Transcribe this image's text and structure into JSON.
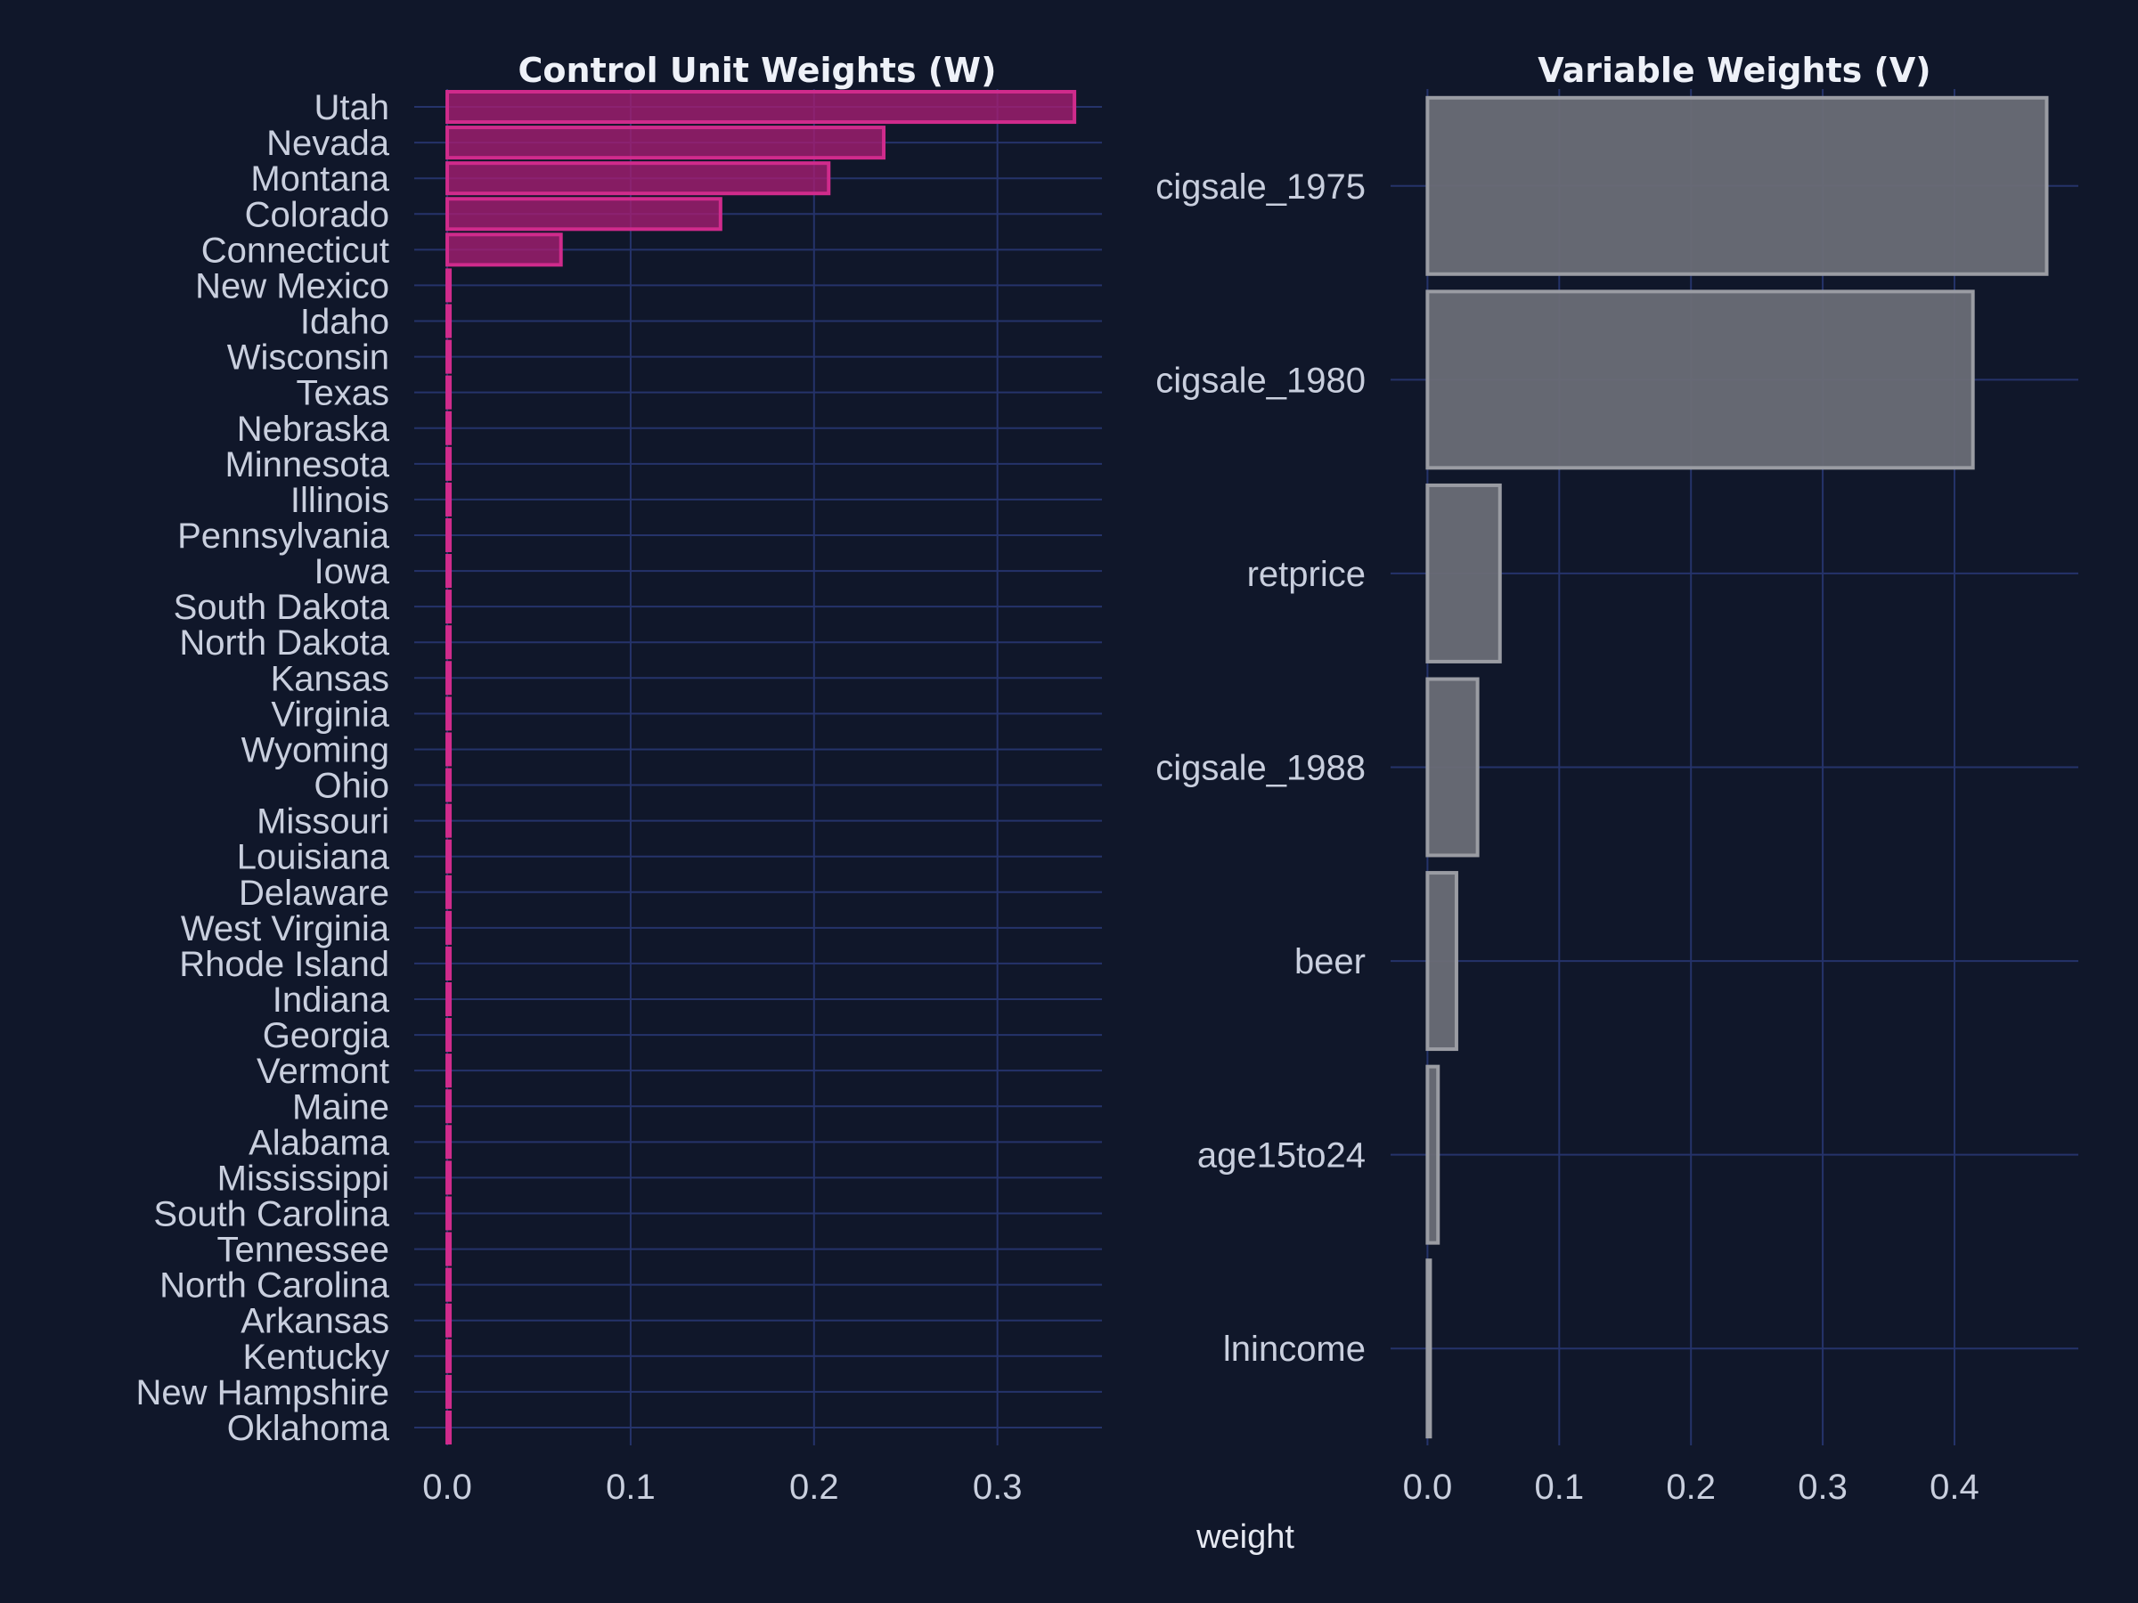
{
  "chart_data": [
    {
      "type": "bar",
      "orientation": "horizontal",
      "title": "Control Unit Weights (W)",
      "categories": [
        "Utah",
        "Nevada",
        "Montana",
        "Colorado",
        "Connecticut",
        "New Mexico",
        "Idaho",
        "Wisconsin",
        "Texas",
        "Nebraska",
        "Minnesota",
        "Illinois",
        "Pennsylvania",
        "Iowa",
        "South Dakota",
        "North Dakota",
        "Kansas",
        "Virginia",
        "Wyoming",
        "Ohio",
        "Missouri",
        "Louisiana",
        "Delaware",
        "West Virginia",
        "Rhode Island",
        "Indiana",
        "Georgia",
        "Vermont",
        "Maine",
        "Alabama",
        "Mississippi",
        "South Carolina",
        "Tennessee",
        "North Carolina",
        "Arkansas",
        "Kentucky",
        "New Hampshire",
        "Oklahoma"
      ],
      "values": [
        0.342,
        0.238,
        0.208,
        0.149,
        0.062,
        0,
        0,
        0,
        0,
        0,
        0,
        0,
        0,
        0,
        0,
        0,
        0,
        0,
        0,
        0,
        0,
        0,
        0,
        0,
        0,
        0,
        0,
        0,
        0,
        0,
        0,
        0,
        0,
        0,
        0,
        0,
        0,
        0
      ],
      "xlim": [
        -0.018,
        0.357
      ],
      "xticks": [
        "0.0",
        "0.1",
        "0.2",
        "0.3"
      ],
      "xtick_values": [
        0,
        0.1,
        0.2,
        0.3
      ],
      "grid": true,
      "bar_color": "#a81e73",
      "bar_edge_color": "#d02b8c"
    },
    {
      "type": "bar",
      "orientation": "horizontal",
      "title": "Variable Weights (V)",
      "categories": [
        "cigsale_1975",
        "cigsale_1980",
        "retprice",
        "cigsale_1988",
        "beer",
        "age15to24",
        "lnincome"
      ],
      "values": [
        0.47,
        0.414,
        0.055,
        0.038,
        0.022,
        0.008,
        0.002
      ],
      "xlim": [
        -0.028,
        0.494
      ],
      "xticks": [
        "0.0",
        "0.1",
        "0.2",
        "0.3",
        "0.4"
      ],
      "xtick_values": [
        0,
        0.1,
        0.2,
        0.3,
        0.4
      ],
      "grid": true,
      "bar_color": "#6a6d76",
      "bar_edge_color": "#9a9ca3"
    }
  ],
  "xlabel": "weight"
}
